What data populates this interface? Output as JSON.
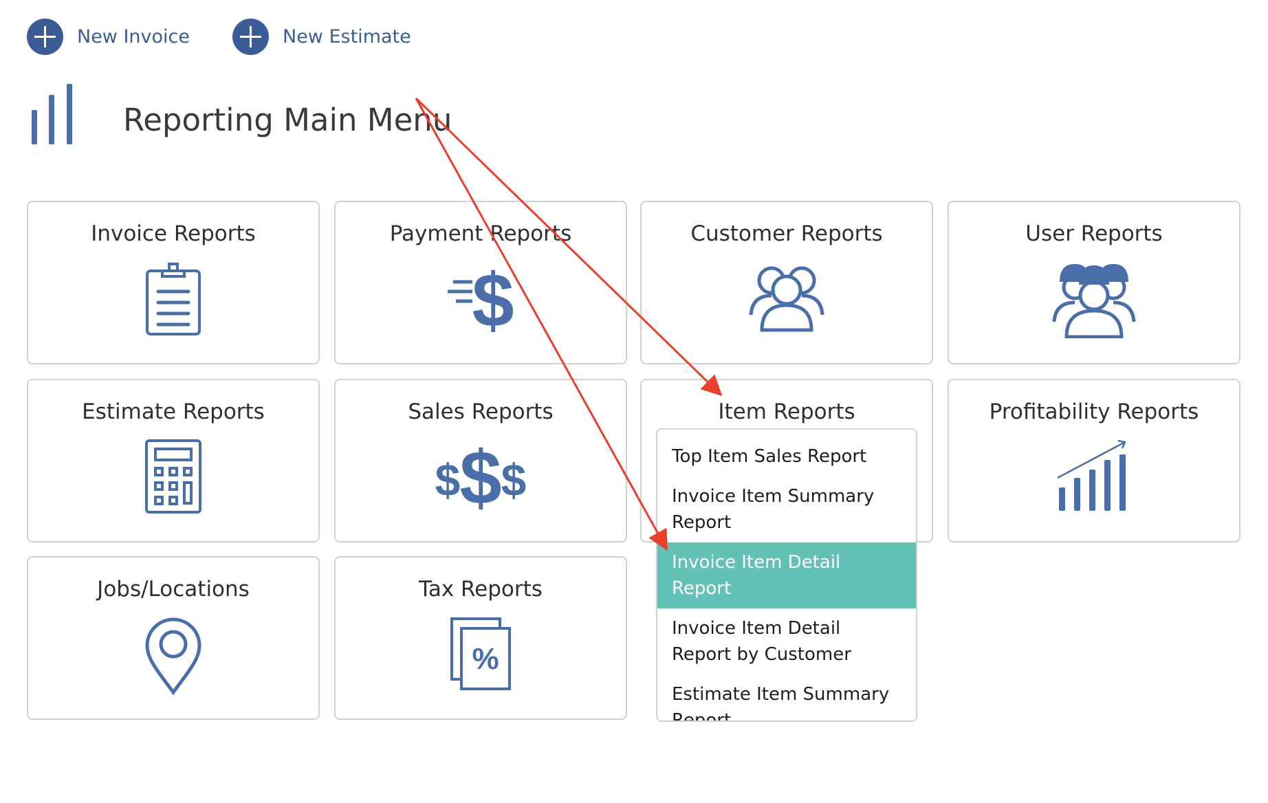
{
  "actions": [
    {
      "label": "New Invoice",
      "icon": "plus-circle-icon"
    },
    {
      "label": "New Estimate",
      "icon": "plus-circle-icon"
    }
  ],
  "page": {
    "title": "Reporting Main Menu",
    "icon": "bar-chart-icon"
  },
  "cards": [
    {
      "label": "Invoice Reports",
      "icon": "clipboard-icon"
    },
    {
      "label": "Payment Reports",
      "icon": "dollar-fast-icon"
    },
    {
      "label": "Customer Reports",
      "icon": "users-icon"
    },
    {
      "label": "User Reports",
      "icon": "workers-icon"
    },
    {
      "label": "Estimate Reports",
      "icon": "calculator-icon"
    },
    {
      "label": "Sales Reports",
      "icon": "dollars-icon"
    },
    {
      "label": "Item Reports",
      "icon": ""
    },
    {
      "label": "Profitability Reports",
      "icon": "growth-chart-icon"
    },
    {
      "label": "Jobs/Locations",
      "icon": "map-pin-icon"
    },
    {
      "label": "Tax Reports",
      "icon": "tax-document-icon"
    }
  ],
  "item_menu": {
    "items": [
      {
        "label": "Top Item Sales Report"
      },
      {
        "label": "Invoice Item Summary Report"
      },
      {
        "label": "Invoice Item Detail Report",
        "active": true
      },
      {
        "label": "Invoice Item Detail Report by Customer"
      },
      {
        "label": "Estimate Item Summary Report"
      }
    ]
  },
  "colors": {
    "brand": "#3b5c96",
    "icon": "#4a6fa8",
    "highlight": "#64c1b5",
    "annotation": "#e8402a"
  }
}
